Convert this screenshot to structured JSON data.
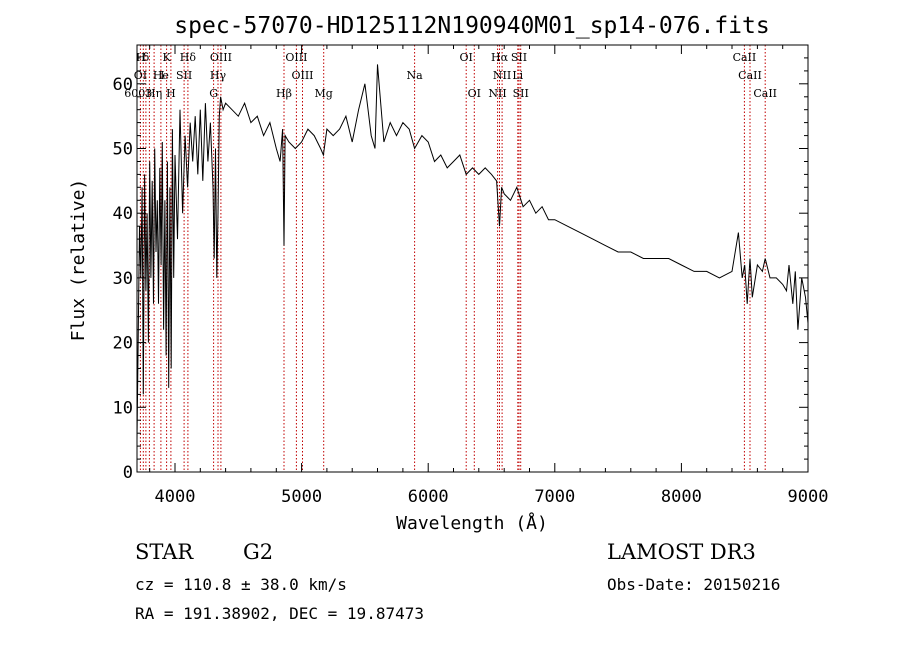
{
  "chart_data": {
    "type": "line",
    "title": "spec-57070-HD125112N190940M01_sp14-076.fits",
    "xlabel": "Wavelength (Å)",
    "ylabel": "Flux (relative)",
    "xlim": [
      3700,
      9000
    ],
    "ylim": [
      0,
      66
    ],
    "xticks": [
      4000,
      5000,
      6000,
      7000,
      8000,
      9000
    ],
    "yticks": [
      0,
      10,
      20,
      30,
      40,
      50,
      60
    ],
    "grid": false,
    "series": [
      {
        "name": "spectrum",
        "x": [
          3700,
          3710,
          3720,
          3730,
          3740,
          3750,
          3760,
          3770,
          3780,
          3790,
          3800,
          3810,
          3820,
          3830,
          3840,
          3850,
          3860,
          3870,
          3880,
          3890,
          3900,
          3910,
          3920,
          3930,
          3940,
          3950,
          3960,
          3970,
          3980,
          3990,
          4000,
          4020,
          4040,
          4060,
          4080,
          4100,
          4120,
          4140,
          4160,
          4180,
          4200,
          4220,
          4240,
          4260,
          4280,
          4300,
          4310,
          4320,
          4330,
          4340,
          4350,
          4360,
          4380,
          4400,
          4450,
          4500,
          4550,
          4600,
          4650,
          4700,
          4750,
          4800,
          4830,
          4850,
          4861,
          4870,
          4900,
          4950,
          5000,
          5050,
          5100,
          5150,
          5172,
          5200,
          5250,
          5300,
          5350,
          5400,
          5450,
          5500,
          5550,
          5580,
          5600,
          5650,
          5700,
          5750,
          5800,
          5850,
          5893,
          5950,
          6000,
          6050,
          6100,
          6150,
          6200,
          6250,
          6300,
          6350,
          6400,
          6450,
          6500,
          6540,
          6563,
          6580,
          6600,
          6650,
          6700,
          6750,
          6800,
          6850,
          6900,
          6950,
          7000,
          7100,
          7200,
          7300,
          7400,
          7500,
          7600,
          7700,
          7800,
          7900,
          8000,
          8100,
          8200,
          8300,
          8400,
          8450,
          8480,
          8500,
          8520,
          8542,
          8560,
          8600,
          8640,
          8662,
          8700,
          8750,
          8800,
          8830,
          8850,
          8880,
          8900,
          8920,
          8950,
          8980,
          9000
        ],
        "values": [
          5,
          22,
          38,
          30,
          44,
          12,
          46,
          28,
          40,
          20,
          48,
          30,
          45,
          26,
          50,
          34,
          42,
          26,
          47,
          32,
          51,
          22,
          42,
          18,
          48,
          13,
          44,
          16,
          53,
          30,
          49,
          36,
          56,
          40,
          52,
          44,
          54,
          48,
          55,
          46,
          56,
          45,
          57,
          48,
          54,
          44,
          33,
          50,
          30,
          40,
          55,
          58,
          56,
          57,
          56,
          55,
          57,
          54,
          55,
          52,
          54,
          50,
          48,
          53,
          35,
          52,
          51,
          50,
          51,
          53,
          52,
          50,
          49,
          53,
          52,
          53,
          55,
          51,
          56,
          60,
          52,
          50,
          63,
          51,
          54,
          52,
          54,
          53,
          50,
          52,
          51,
          48,
          49,
          47,
          48,
          49,
          46,
          47,
          46,
          47,
          46,
          45,
          38,
          44,
          43,
          42,
          44,
          41,
          42,
          40,
          41,
          39,
          39,
          38,
          37,
          36,
          35,
          34,
          34,
          33,
          33,
          33,
          32,
          31,
          31,
          30,
          31,
          37,
          30,
          32,
          26,
          33,
          27,
          32,
          31,
          33,
          30,
          30,
          29,
          28,
          32,
          26,
          31,
          22,
          30,
          27,
          23
        ]
      }
    ],
    "lines": [
      {
        "label": "H",
        "x": 3729,
        "row": 0
      },
      {
        "label": "δ",
        "x": 3770,
        "row": 0
      },
      {
        "label": "K",
        "x": 3934,
        "row": 0
      },
      {
        "label": "Hδ",
        "x": 4102,
        "row": 0
      },
      {
        "label": "OIII",
        "x": 4363,
        "row": 0
      },
      {
        "label": "OIII",
        "x": 4959,
        "row": 0
      },
      {
        "label": "OI",
        "x": 6300,
        "row": 0
      },
      {
        "label": "Hα",
        "x": 6563,
        "row": 0
      },
      {
        "label": "SII",
        "x": 6717,
        "row": 0
      },
      {
        "label": "CaII",
        "x": 8498,
        "row": 0
      },
      {
        "label": "OI",
        "x": 3727,
        "row": 1
      },
      {
        "label": "He",
        "x": 3889,
        "row": 1
      },
      {
        "label": "I",
        "x": 3900,
        "row": 1
      },
      {
        "label": "SII",
        "x": 4072,
        "row": 1
      },
      {
        "label": "Hγ",
        "x": 4340,
        "row": 1
      },
      {
        "label": "OIII",
        "x": 5007,
        "row": 1
      },
      {
        "label": "Na",
        "x": 5893,
        "row": 1
      },
      {
        "label": "NII",
        "x": 6584,
        "row": 1
      },
      {
        "label": "Li",
        "x": 6708,
        "row": 1
      },
      {
        "label": "CaII",
        "x": 8542,
        "row": 1
      },
      {
        "label": "6003",
        "x": 3710,
        "row": 2
      },
      {
        "label": "Hη",
        "x": 3835,
        "row": 2
      },
      {
        "label": "H",
        "x": 3968,
        "row": 2
      },
      {
        "label": "G",
        "x": 4305,
        "row": 2
      },
      {
        "label": "Hβ",
        "x": 4861,
        "row": 2
      },
      {
        "label": "Mg",
        "x": 5175,
        "row": 2
      },
      {
        "label": "OI",
        "x": 6364,
        "row": 2
      },
      {
        "label": "NII",
        "x": 6548,
        "row": 2
      },
      {
        "label": "SII",
        "x": 6731,
        "row": 2
      },
      {
        "label": "CaII",
        "x": 8662,
        "row": 2
      }
    ],
    "markers": [
      3727,
      3750,
      3770,
      3798,
      3835,
      3889,
      3934,
      3968,
      4072,
      4102,
      4305,
      4340,
      4363,
      4861,
      4959,
      5007,
      5175,
      5893,
      6300,
      6364,
      6548,
      6563,
      6584,
      6708,
      6717,
      6731,
      8498,
      8542,
      8662
    ]
  },
  "info": {
    "object_type": "STAR",
    "subclass": "G2",
    "survey": "LAMOST DR3",
    "redshift": "cz = 110.8 ± 38.0 km/s",
    "obs_date": "Obs-Date: 20150216",
    "coords": "RA = 191.38902, DEC =  19.87473"
  }
}
